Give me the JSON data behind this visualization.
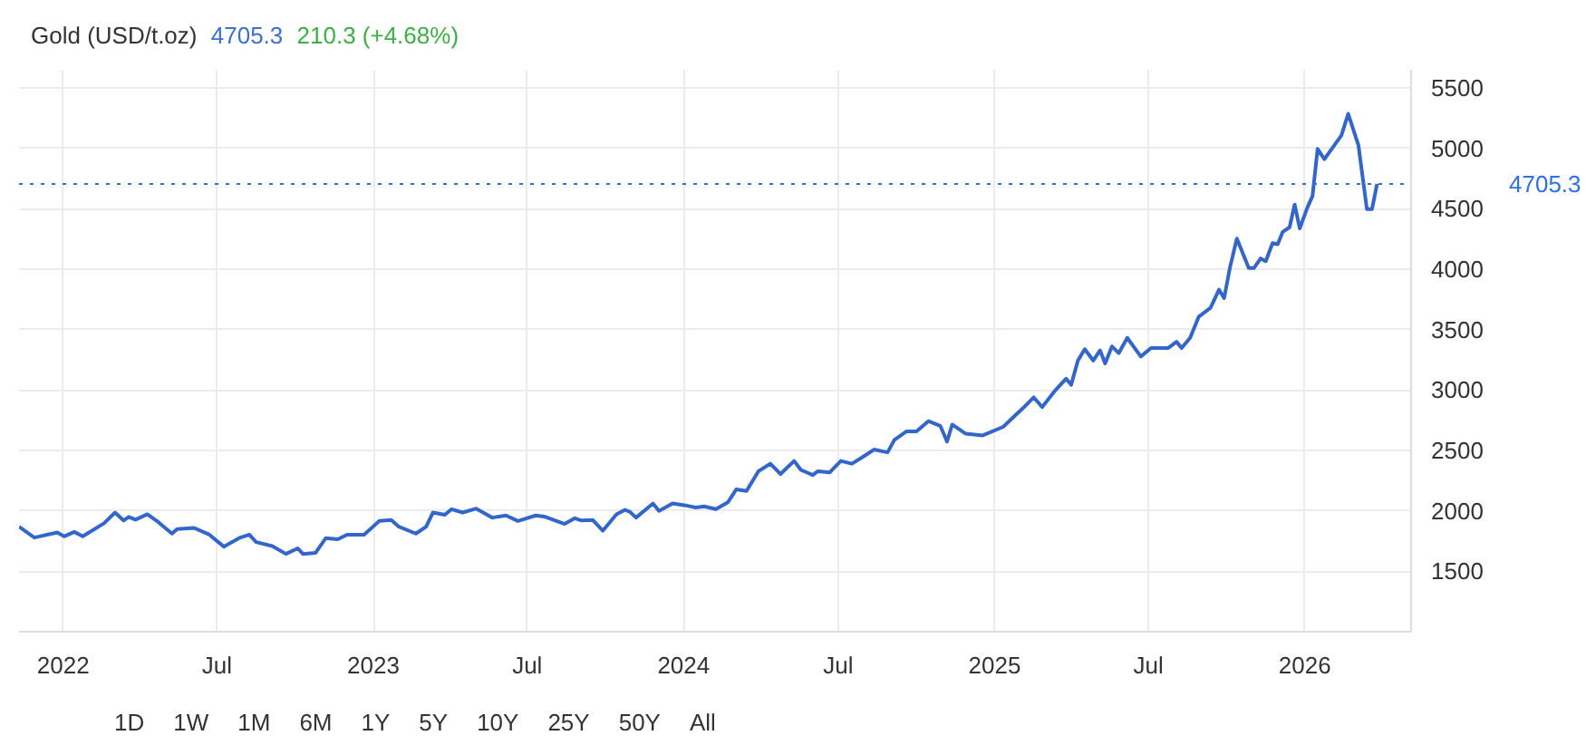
{
  "chart_data": {
    "type": "line",
    "title": "Gold (USD/t.oz)",
    "annotations": [
      "4705.3",
      "210.3 (+4.68%)",
      "1D",
      "1W",
      "1M",
      "6M",
      "1Y",
      "5Y",
      "10Y",
      "25Y",
      "50Y",
      "All"
    ],
    "x": [
      "2021-11-10",
      "2021-11-28",
      "2021-12-25",
      "2022-01-02",
      "2022-01-14",
      "2022-01-24",
      "2022-02-18",
      "2022-03-03",
      "2022-03-13",
      "2022-03-19",
      "2022-03-27",
      "2022-04-10",
      "2022-04-23",
      "2022-05-09",
      "2022-05-15",
      "2022-06-04",
      "2022-06-22",
      "2022-07-09",
      "2022-07-27",
      "2022-08-08",
      "2022-08-16",
      "2022-09-04",
      "2022-09-20",
      "2022-10-04",
      "2022-10-10",
      "2022-10-25",
      "2022-11-06",
      "2022-11-20",
      "2022-12-01",
      "2022-12-21",
      "2023-01-08",
      "2023-01-22",
      "2023-01-31",
      "2023-02-20",
      "2023-03-04",
      "2023-03-12",
      "2023-03-26",
      "2023-04-03",
      "2023-04-16",
      "2023-05-02",
      "2023-05-21",
      "2023-06-06",
      "2023-06-20",
      "2023-07-11",
      "2023-07-21",
      "2023-08-14",
      "2023-08-26",
      "2023-09-03",
      "2023-09-16",
      "2023-09-28",
      "2023-10-14",
      "2023-10-24",
      "2023-10-30",
      "2023-11-06",
      "2023-11-26",
      "2023-12-03",
      "2023-12-19",
      "2024-01-02",
      "2024-01-15",
      "2024-01-25",
      "2024-02-08",
      "2024-02-22",
      "2024-03-03",
      "2024-03-15",
      "2024-03-29",
      "2024-04-12",
      "2024-04-24",
      "2024-05-10",
      "2024-05-18",
      "2024-06-01",
      "2024-06-07",
      "2024-06-21",
      "2024-07-04",
      "2024-07-17",
      "2024-07-31",
      "2024-08-12",
      "2024-08-28",
      "2024-09-05",
      "2024-09-19",
      "2024-10-01",
      "2024-10-15",
      "2024-10-29",
      "2024-11-06",
      "2024-11-12",
      "2024-11-28",
      "2024-12-18",
      "2025-01-11",
      "2025-01-25",
      "2025-02-06",
      "2025-02-16",
      "2025-02-26",
      "2025-03-12",
      "2025-03-26",
      "2025-04-01",
      "2025-04-09",
      "2025-04-17",
      "2025-04-27",
      "2025-05-05",
      "2025-05-11",
      "2025-05-19",
      "2025-05-27",
      "2025-06-06",
      "2025-06-22",
      "2025-07-04",
      "2025-07-24",
      "2025-08-03",
      "2025-08-09",
      "2025-08-19",
      "2025-08-29",
      "2025-09-12",
      "2025-09-22",
      "2025-09-28",
      "2025-10-05",
      "2025-10-13",
      "2025-10-27",
      "2025-11-02",
      "2025-11-10",
      "2025-11-16",
      "2025-11-24",
      "2025-11-30",
      "2025-12-06",
      "2025-12-14",
      "2025-12-20",
      "2025-12-26",
      "2026-01-04",
      "2026-01-10",
      "2026-01-16",
      "2026-01-24",
      "2026-02-13",
      "2026-02-21",
      "2026-03-05",
      "2026-03-15",
      "2026-03-21",
      "2026-03-27"
    ],
    "series": [
      {
        "color": "#3366cc",
        "values": [
          1869,
          1779,
          1821,
          1789,
          1826,
          1789,
          1897,
          1986,
          1920,
          1950,
          1927,
          1972,
          1906,
          1812,
          1850,
          1859,
          1803,
          1704,
          1775,
          1803,
          1742,
          1709,
          1644,
          1690,
          1644,
          1653,
          1775,
          1765,
          1803,
          1803,
          1916,
          1925,
          1869,
          1812,
          1869,
          1986,
          1967,
          2014,
          1986,
          2019,
          1944,
          1962,
          1916,
          1962,
          1953,
          1892,
          1939,
          1920,
          1925,
          1836,
          1972,
          2009,
          1991,
          1944,
          2061,
          2000,
          2061,
          2047,
          2028,
          2037,
          2014,
          2070,
          2178,
          2164,
          2328,
          2390,
          2305,
          2413,
          2339,
          2296,
          2328,
          2319,
          2413,
          2390,
          2451,
          2507,
          2484,
          2587,
          2657,
          2657,
          2742,
          2704,
          2573,
          2714,
          2638,
          2624,
          2695,
          2789,
          2868,
          2939,
          2859,
          2986,
          3094,
          3043,
          3244,
          3338,
          3244,
          3328,
          3220,
          3361,
          3305,
          3432,
          3277,
          3347,
          3347,
          3399,
          3347,
          3432,
          3605,
          3680,
          3831,
          3760,
          4018,
          4253,
          4009,
          4009,
          4089,
          4066,
          4216,
          4206,
          4309,
          4347,
          4535,
          4337,
          4511,
          4605,
          4995,
          4910,
          5107,
          5285,
          5027,
          4497,
          4497,
          4705.3
        ]
      }
    ],
    "xlim": [
      "2021-11-10",
      "2026-05-06"
    ],
    "xticks": [
      {
        "value": "2022-01-01",
        "label": "2022"
      },
      {
        "value": "2022-07-01",
        "label": "Jul"
      },
      {
        "value": "2023-01-01",
        "label": "2023"
      },
      {
        "value": "2023-07-01",
        "label": "Jul"
      },
      {
        "value": "2024-01-01",
        "label": "2024"
      },
      {
        "value": "2024-07-01",
        "label": "Jul"
      },
      {
        "value": "2025-01-01",
        "label": "2025"
      },
      {
        "value": "2025-07-01",
        "label": "Jul"
      },
      {
        "value": "2026-01-01",
        "label": "2026"
      }
    ],
    "ylim": [
      1000,
      5650
    ],
    "yticks": [
      1500,
      2000,
      2500,
      3000,
      3500,
      4000,
      4500,
      5000,
      5500
    ],
    "ref_lines": [
      {
        "axis": "y",
        "value": 4705.3,
        "label": "4705.3",
        "color": "#2f6fe4",
        "line_style": "dotted"
      }
    ],
    "grid": true,
    "marker": "none",
    "line_style": "solid"
  }
}
